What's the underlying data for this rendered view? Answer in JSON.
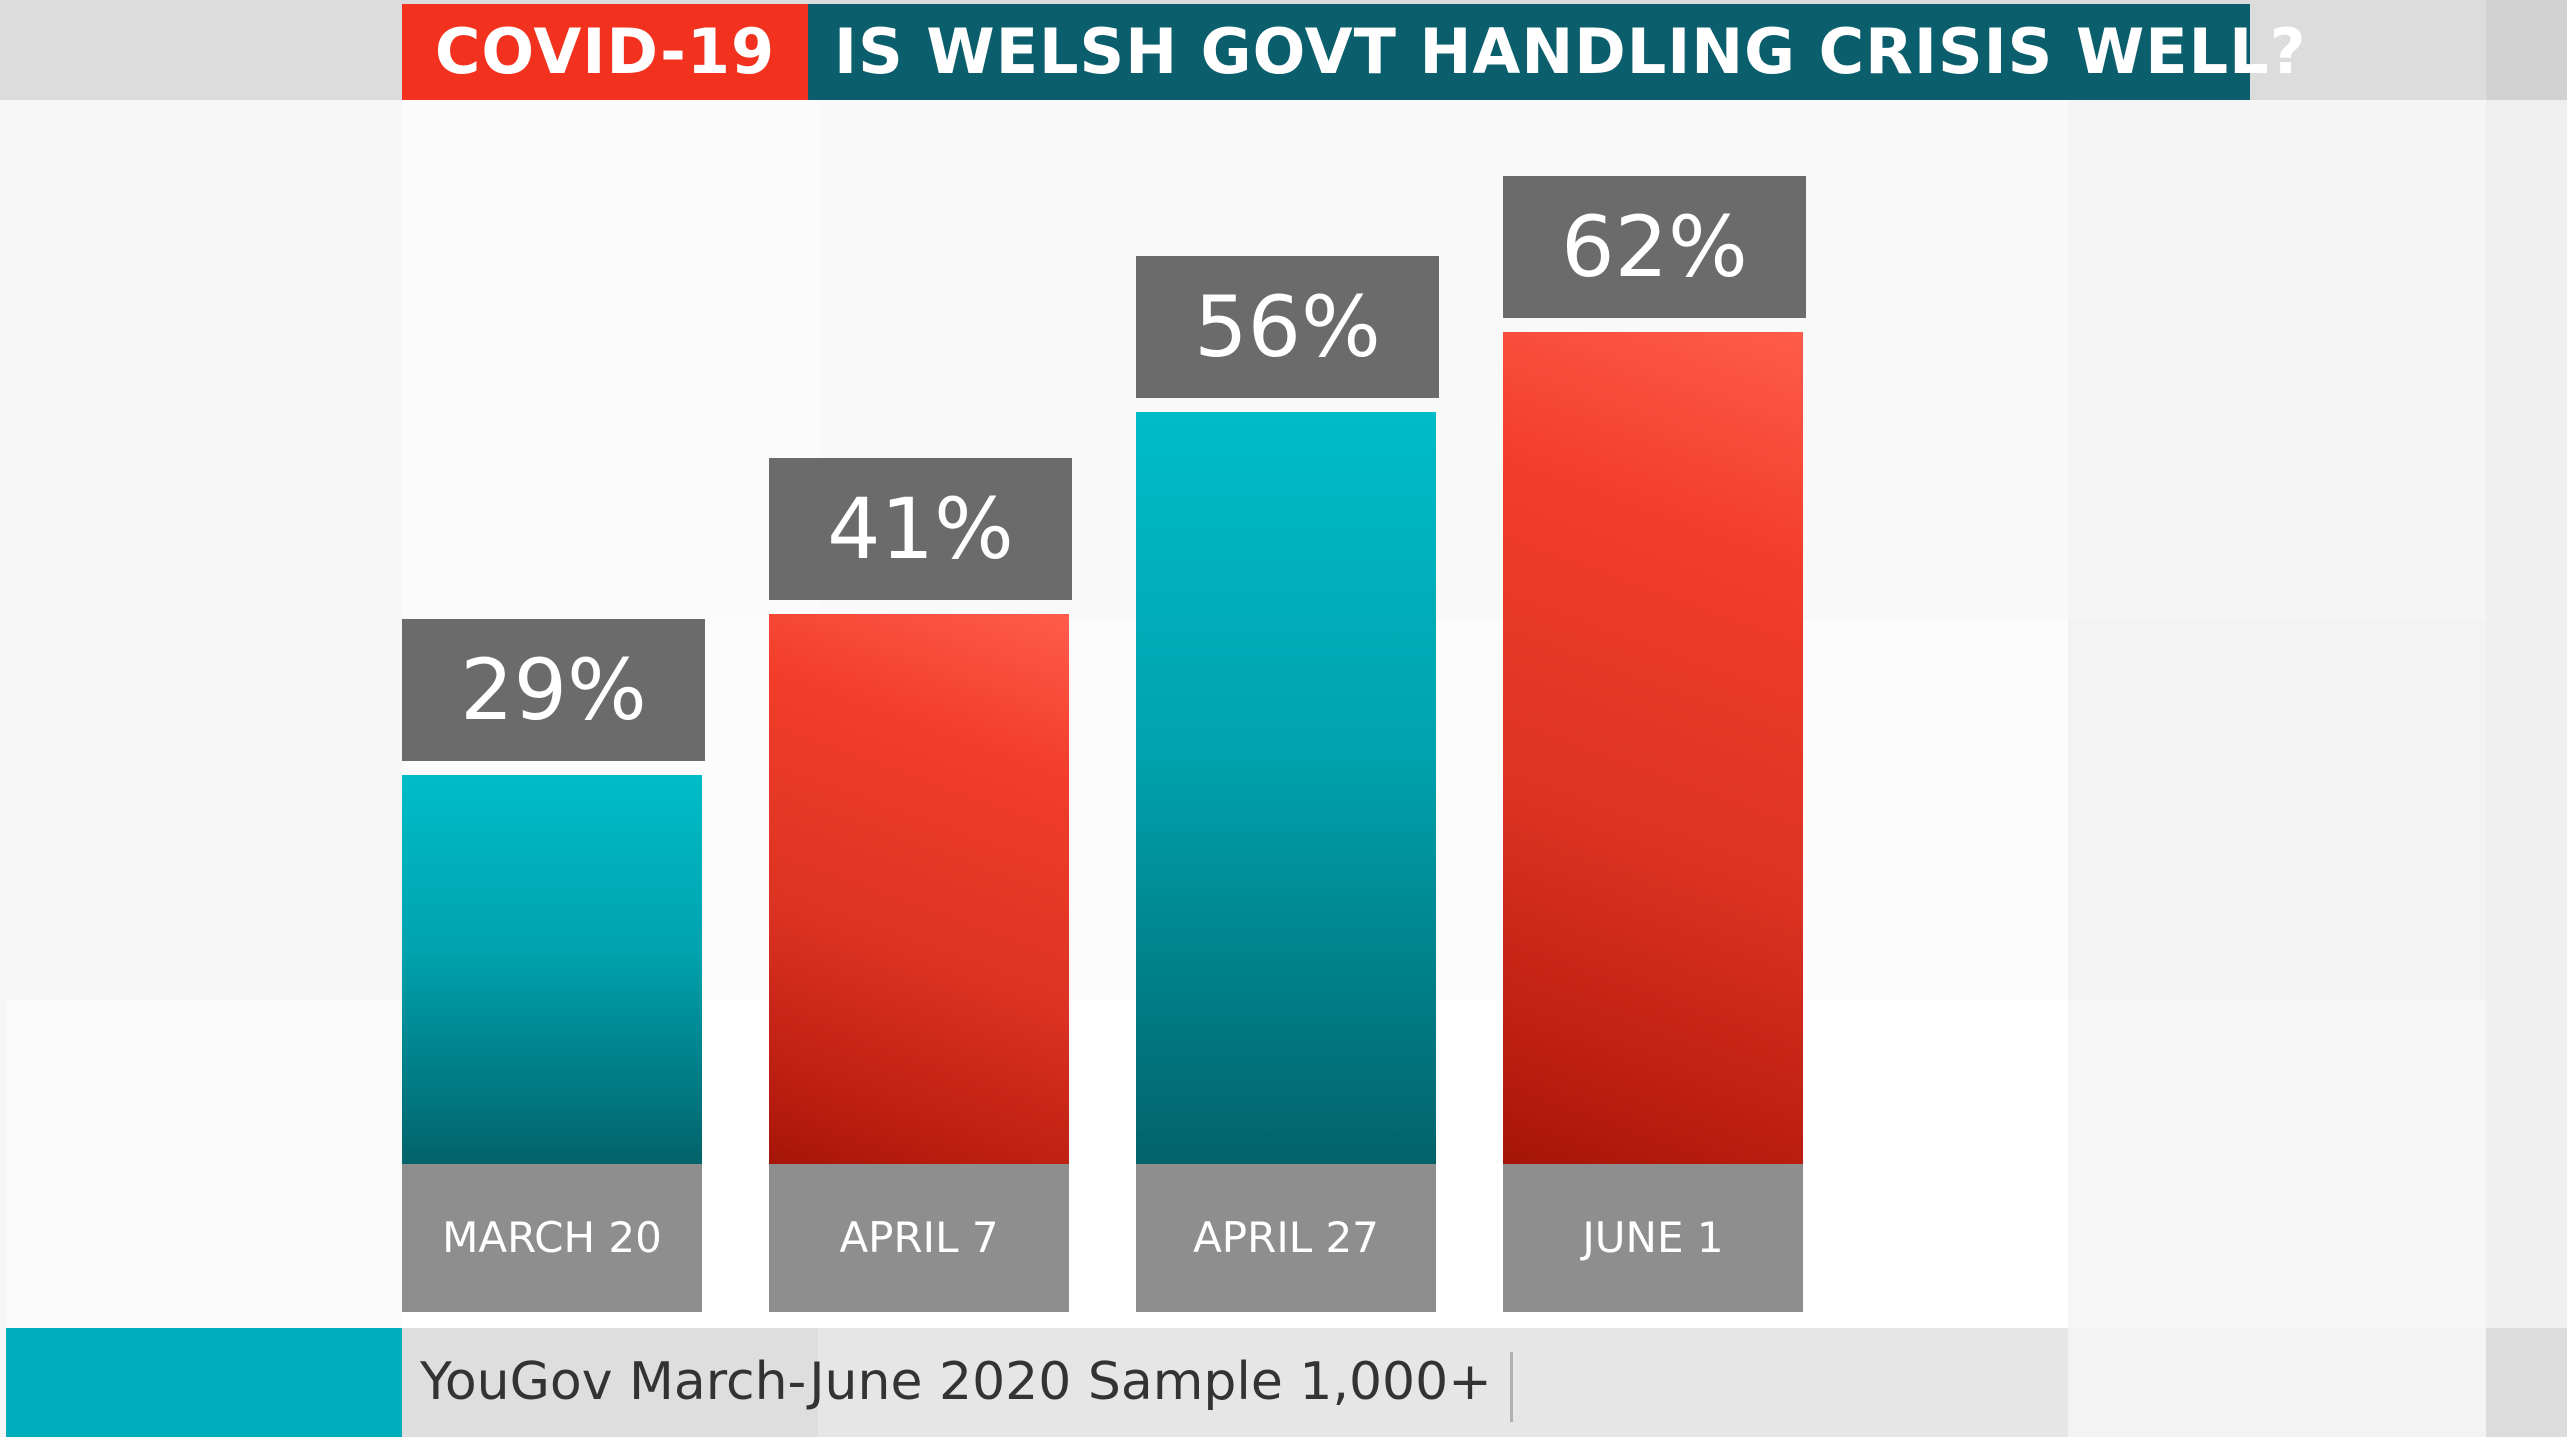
{
  "header": {
    "tag": "COVID-19",
    "question": "IS WELSH GOVT HANDLING CRISIS WELL?"
  },
  "colors": {
    "tag_red": "#f2321e",
    "title_teal": "#0b5e6b",
    "bar_teal": "#00bcc8",
    "bar_red": "#f23d2a",
    "label_box_grey": "#6b6b6b",
    "category_box_grey": "#8e8e8e",
    "footer_teal": "#00adbd"
  },
  "chart_data": {
    "type": "bar",
    "title": "IS WELSH GOVT HANDLING CRISIS WELL?",
    "xlabel": "",
    "ylabel": "",
    "ylim": [
      0,
      100
    ],
    "grid": false,
    "categories": [
      "MARCH 20",
      "APRIL 7",
      "APRIL 27",
      "JUNE 1"
    ],
    "values": [
      29,
      41,
      56,
      62
    ],
    "value_labels": [
      "29%",
      "41%",
      "56%",
      "62%"
    ],
    "bar_colors": [
      "teal",
      "red",
      "teal",
      "red"
    ]
  },
  "footer": {
    "source": "YouGov March-June 2020 Sample 1,000+"
  }
}
